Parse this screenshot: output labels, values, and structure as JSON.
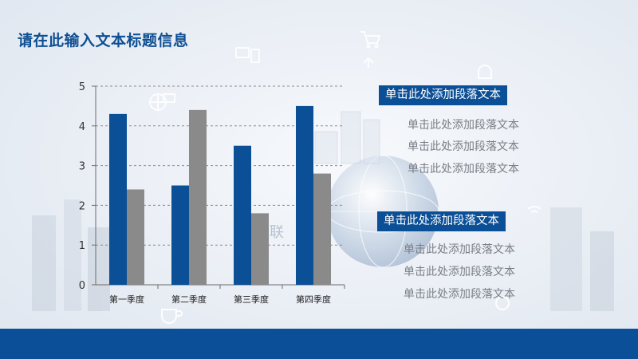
{
  "page": {
    "title": "请在此输入文本标题信息",
    "watermark_char": "联"
  },
  "colors": {
    "title": "#0e4f93",
    "series_blue": "#0b4f96",
    "series_gray": "#8a8a8a",
    "heading_bg": "#0b4f96",
    "footer_band": "#0a4f98",
    "sub_text": "#7a7f86"
  },
  "text_groups": [
    {
      "heading": "单击此处添加段落文本",
      "lines": [
        "单击此处添加段落文本",
        "单击此处添加段落文本",
        "单击此处添加段落文本"
      ]
    },
    {
      "heading": "单击此处添加段落文本",
      "lines": [
        "单击此处添加段落文本",
        "单击此处添加段落文本",
        "单击此处添加段落文本"
      ]
    }
  ],
  "chart_data": {
    "type": "bar",
    "categories": [
      "第一季度",
      "第二季度",
      "第三季度",
      "第四季度"
    ],
    "series": [
      {
        "values": [
          4.3,
          2.5,
          3.5,
          4.5
        ]
      },
      {
        "values": [
          2.4,
          4.4,
          1.8,
          2.8
        ]
      }
    ],
    "ylim": [
      0,
      5
    ],
    "yticks": [
      "0",
      "1",
      "2",
      "3",
      "4",
      "5"
    ],
    "grid": true,
    "legend": "none"
  }
}
